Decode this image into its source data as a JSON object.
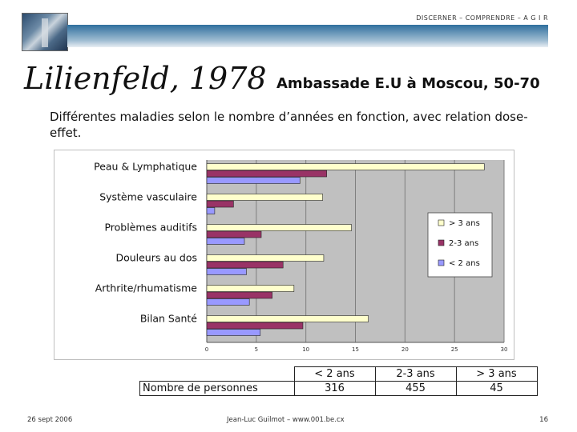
{
  "header": {
    "tagline": "DISCERNER – COMPRENDRE – A G I R",
    "title_left": "Lilienfeld, 1978",
    "title_right": "Ambassade E.U à Moscou, 50-70",
    "subtitle": "Différentes maladies selon le nombre d’années en fonction, avec relation dose-effet."
  },
  "chart_data": {
    "type": "bar",
    "orientation": "horizontal",
    "categories": [
      "Peau & Lymphatique",
      "Système vasculaire",
      "Problèmes auditifs",
      "Douleurs au dos",
      "Arthrite/rhumatisme",
      "Bilan Santé"
    ],
    "series": [
      {
        "name": "> 3 ans",
        "color": "#ffffcc",
        "values": [
          28,
          11.7,
          14.6,
          11.8,
          8.8,
          16.3
        ]
      },
      {
        "name": "2-3 ans",
        "color": "#993366",
        "values": [
          12.1,
          2.7,
          5.5,
          7.7,
          6.6,
          9.7
        ]
      },
      {
        "name": "< 2 ans",
        "color": "#9999ff",
        "values": [
          9.4,
          0.8,
          3.8,
          4.0,
          4.3,
          5.4
        ]
      }
    ],
    "xticks": [
      0,
      5,
      10,
      15,
      20,
      25,
      30
    ],
    "xlim": [
      0,
      30
    ],
    "grid": true,
    "legend_position": "right"
  },
  "table": {
    "row_label": "Nombre de personnes",
    "headers": [
      "< 2 ans",
      "2-3 ans",
      "> 3 ans"
    ],
    "values": [
      "316",
      "455",
      "45"
    ]
  },
  "footer": {
    "date": "26 sept 2006",
    "author": "Jean-Luc Guilmot – www.001.be.cx",
    "page": "16"
  }
}
